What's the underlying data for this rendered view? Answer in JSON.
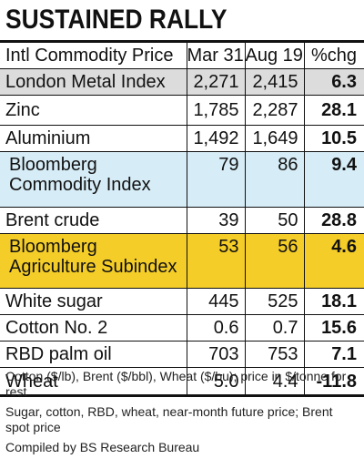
{
  "title": "SUSTAINED RALLY",
  "table": {
    "headers": [
      "Intl Commodity Price",
      "Mar 31",
      "Aug 19",
      "%chg"
    ],
    "rows": [
      {
        "name": "London Metal Index",
        "mar31": "2,271",
        "aug19": "2,415",
        "chg": "6.3"
      },
      {
        "name": "Zinc",
        "mar31": "1,785",
        "aug19": "2,287",
        "chg": "28.1"
      },
      {
        "name": "Aluminium",
        "mar31": "1,492",
        "aug19": "1,649",
        "chg": "10.5"
      },
      {
        "name": "Bloomberg Commodity Index",
        "mar31": "79",
        "aug19": "86",
        "chg": "9.4"
      },
      {
        "name": "Brent crude",
        "mar31": "39",
        "aug19": "50",
        "chg": "28.8"
      },
      {
        "name": "Bloomberg Agriculture Subindex",
        "mar31": "53",
        "aug19": "56",
        "chg": "4.6"
      },
      {
        "name": "White sugar",
        "mar31": "445",
        "aug19": "525",
        "chg": "18.1"
      },
      {
        "name": "Cotton No. 2",
        "mar31": "0.6",
        "aug19": "0.7",
        "chg": "15.6"
      },
      {
        "name": "RBD palm oil",
        "mar31": "703",
        "aug19": "753",
        "chg": "7.1"
      },
      {
        "name": "Wheat",
        "mar31": "5.0",
        "aug19": "4.4",
        "chg": "-11.8"
      }
    ]
  },
  "notes": [
    "Cotton ($/lb), Brent ($/bbl), Wheat ($/bu); price in $/tonne for rest",
    "Sugar, cotton, RBD, wheat, near-month future price; Brent spot price",
    "Compiled by BS Research Bureau"
  ],
  "colors": {
    "gray_row": "#dcdcdc",
    "blue_row": "#d6ecf6",
    "yellow_row": "#f4cd29"
  }
}
